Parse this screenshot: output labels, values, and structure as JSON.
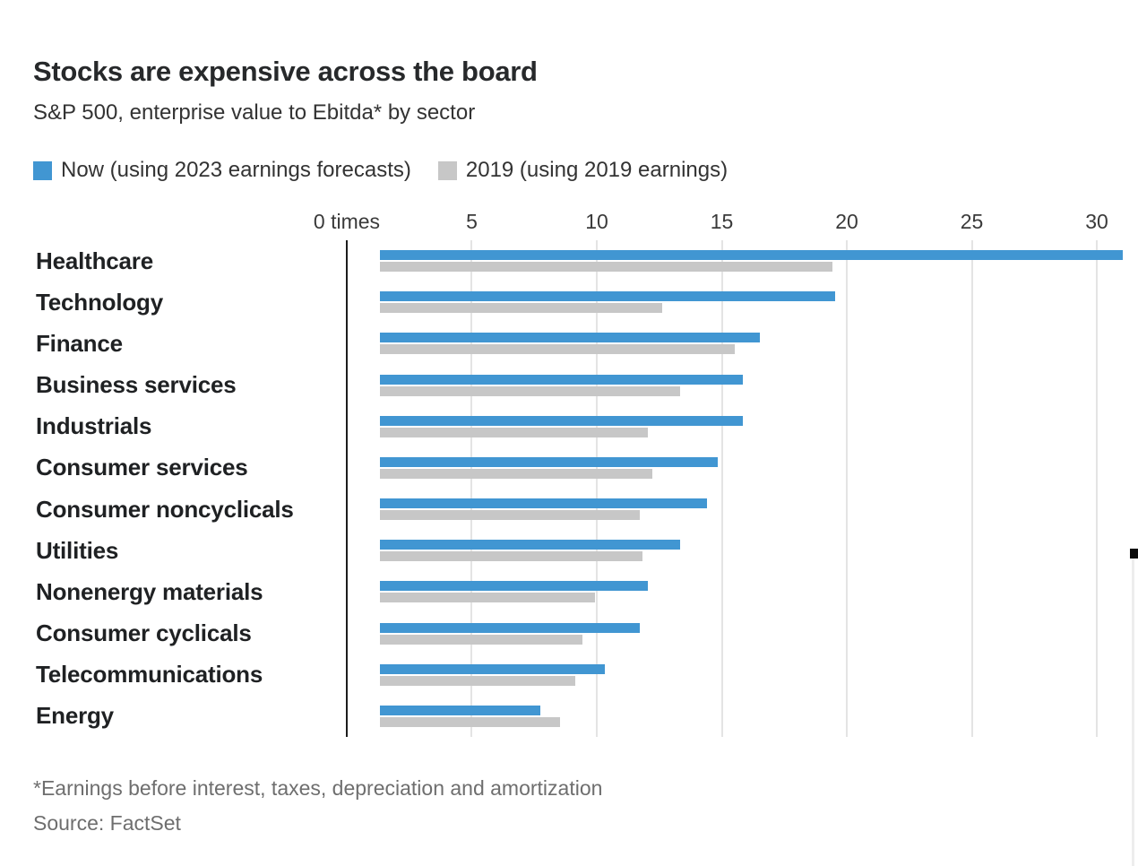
{
  "title": "Stocks are expensive across the board",
  "subtitle": "S&P 500, enterprise value to Ebitda* by sector",
  "colors": {
    "now_blue": "#4196d2",
    "prior_gray": "#c7c7c7",
    "gridline": "#e4e4e4",
    "axis_line": "#1c1c1c",
    "text_dark": "#27292b",
    "text_muted": "#6e6e6e"
  },
  "legend": {
    "items": [
      {
        "label": "Now (using 2023 earnings forecasts)",
        "color": "#4196d2"
      },
      {
        "label": "2019 (using 2019 earnings)",
        "color": "#c7c7c7"
      }
    ]
  },
  "chart_data": {
    "type": "bar",
    "orientation": "horizontal",
    "title": "Stocks are expensive across the board",
    "subtitle": "S&P 500, enterprise value to Ebitda* by sector",
    "categories": [
      "Healthcare",
      "Technology",
      "Finance",
      "Business services",
      "Industrials",
      "Consumer services",
      "Consumer noncyclicals",
      "Utilities",
      "Nonenergy materials",
      "Consumer cyclicals",
      "Telecommunications",
      "Energy"
    ],
    "series": [
      {
        "name": "Now (using 2023 earnings forecasts)",
        "color": "#4196d2",
        "values": [
          29.7,
          18.2,
          15.2,
          14.5,
          14.5,
          13.5,
          13.1,
          12.0,
          10.7,
          10.4,
          9.0,
          6.4
        ]
      },
      {
        "name": "2019 (using 2019 earnings)",
        "color": "#c7c7c7",
        "values": [
          18.1,
          11.3,
          14.2,
          12.0,
          10.7,
          10.9,
          10.4,
          10.5,
          8.6,
          8.1,
          7.8,
          7.2
        ]
      }
    ],
    "x_axis": {
      "ticks": [
        0,
        5,
        10,
        15,
        20,
        25,
        30
      ],
      "tick_labels": [
        "0 times",
        "5",
        "10",
        "15",
        "20",
        "25",
        "30"
      ],
      "range": [
        0,
        30
      ],
      "unit": "times",
      "grid": true
    },
    "legend_position": "top"
  },
  "footnote": "*Earnings before interest, taxes, depreciation and amortization",
  "source": "Source: FactSet"
}
